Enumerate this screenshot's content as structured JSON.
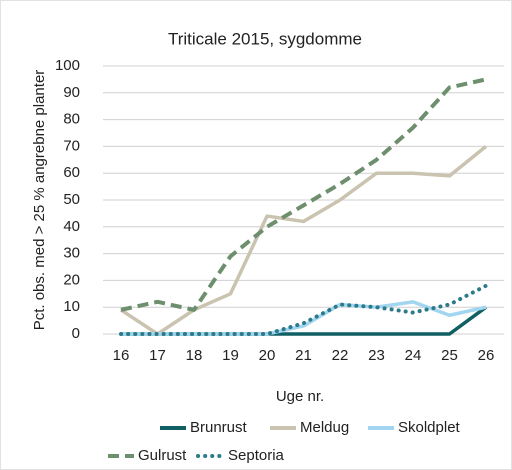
{
  "chart_data": {
    "type": "line",
    "title": "Triticale 2015, sygdomme",
    "x_label": "Uge nr.",
    "y_label": "Pct. obs. med > 25 % angrebne planter",
    "categories": [
      16,
      17,
      18,
      19,
      20,
      21,
      22,
      23,
      24,
      25,
      26
    ],
    "series": [
      {
        "name": "Brunrust",
        "color": "#0f5f63",
        "style": "solid",
        "values": [
          0,
          0,
          0,
          0,
          0,
          0,
          0,
          0,
          0,
          0,
          10
        ]
      },
      {
        "name": "Meldug",
        "color": "#c9c3af",
        "style": "solid",
        "values": [
          9,
          0,
          9,
          15,
          44,
          42,
          50,
          60,
          60,
          59,
          70
        ]
      },
      {
        "name": "Skoldplet",
        "color": "#a2d5ef",
        "style": "solid",
        "values": [
          0,
          0,
          0,
          0,
          0,
          3,
          11,
          10,
          12,
          7,
          10
        ]
      },
      {
        "name": "Gulrust",
        "color": "#6e8f6e",
        "style": "dashed",
        "values": [
          9,
          12,
          9,
          29,
          40,
          48,
          56,
          65,
          77,
          92,
          95
        ]
      },
      {
        "name": "Septoria",
        "color": "#2b7b8a",
        "style": "dotted",
        "values": [
          0,
          0,
          0,
          0,
          0,
          4,
          11,
          10,
          8,
          11,
          18
        ]
      }
    ],
    "ylim": [
      0,
      100
    ],
    "yticks": [
      0,
      10,
      20,
      30,
      40,
      50,
      60,
      70,
      80,
      90,
      100
    ],
    "grid": true,
    "legend": "bottom"
  }
}
